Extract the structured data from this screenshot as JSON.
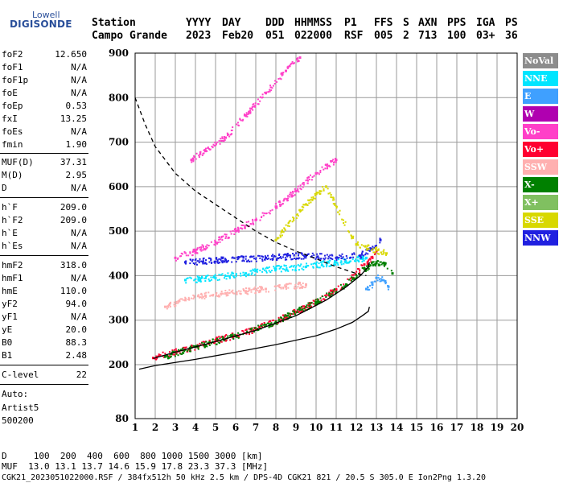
{
  "logo": {
    "top": "Lowell",
    "main": "DIGISONDE"
  },
  "header": {
    "labels": [
      "Station",
      "YYYY",
      "DAY",
      "DDD",
      "HHMMSS",
      "P1",
      "FFS",
      "S",
      "AXN",
      "PPS",
      "IGA",
      "PS"
    ],
    "values": [
      "Campo Grande",
      "2023",
      "Feb20",
      "051",
      "022000",
      "RSF",
      "005",
      "2",
      "713",
      "100",
      "03+",
      "36"
    ]
  },
  "params": [
    {
      "label": "foF2",
      "value": "12.650"
    },
    {
      "label": "foF1",
      "value": "N/A"
    },
    {
      "label": "foF1p",
      "value": "N/A"
    },
    {
      "label": "foE",
      "value": "N/A"
    },
    {
      "label": "foEp",
      "value": "0.53"
    },
    {
      "label": "fxI",
      "value": "13.25"
    },
    {
      "label": "foEs",
      "value": "N/A"
    },
    {
      "label": "fmin",
      "value": "1.90"
    },
    {
      "label": "MUF(D)",
      "value": "37.31"
    },
    {
      "label": "M(D)",
      "value": "2.95"
    },
    {
      "label": "D",
      "value": "N/A"
    },
    {
      "label": "h`F",
      "value": "209.0"
    },
    {
      "label": "h`F2",
      "value": "209.0"
    },
    {
      "label": "h`E",
      "value": "N/A"
    },
    {
      "label": "h`Es",
      "value": "N/A"
    },
    {
      "label": "hmF2",
      "value": "318.0"
    },
    {
      "label": "hmF1",
      "value": "N/A"
    },
    {
      "label": "hmE",
      "value": "110.0"
    },
    {
      "label": "yF2",
      "value": "94.0"
    },
    {
      "label": "yF1",
      "value": "N/A"
    },
    {
      "label": "yE",
      "value": "20.0"
    },
    {
      "label": "B0",
      "value": "88.3"
    },
    {
      "label": "B1",
      "value": "2.48"
    },
    {
      "label": "C-level",
      "value": "22"
    }
  ],
  "auto": {
    "line1": "Auto:",
    "line2": "Artist5",
    "line3": "500200"
  },
  "legend": [
    {
      "label": "NoVal",
      "color": "#8c8c8c"
    },
    {
      "label": "NNE",
      "color": "#00e5ff"
    },
    {
      "label": "E",
      "color": "#3fa0ff"
    },
    {
      "label": "W",
      "color": "#b000b0"
    },
    {
      "label": "Vo-",
      "color": "#ff40c8"
    },
    {
      "label": "Vo+",
      "color": "#ff0030"
    },
    {
      "label": "SSW",
      "color": "#ffb0b0"
    },
    {
      "label": "X-",
      "color": "#008000"
    },
    {
      "label": "X+",
      "color": "#80c060"
    },
    {
      "label": "SSE",
      "color": "#d8d800"
    },
    {
      "label": "NNW",
      "color": "#2020e0"
    }
  ],
  "footer": {
    "d_row": "D     100  200  400  600  800 1000 1500 3000 [km]",
    "muf_row": "MUF  13.0 13.1 13.7 14.6 15.9 17.8 23.3 37.3 [MHz]",
    "file_row": "CGK21_2023051022000.RSF / 384fx512h 50 kHz 2.5 km / DPS-4D CGK21 821 / 20.5 S 305.0 E Ion2Png 1.3.20"
  },
  "chart_data": {
    "type": "scatter",
    "xlim": [
      1,
      20
    ],
    "ylim": [
      80,
      900
    ],
    "xticks": [
      1,
      2,
      3,
      4,
      5,
      6,
      7,
      8,
      9,
      10,
      11,
      12,
      13,
      14,
      15,
      16,
      17,
      18,
      19,
      20
    ],
    "yticks": [
      80,
      200,
      300,
      400,
      500,
      600,
      700,
      800,
      900
    ],
    "grid": true,
    "legend_position": "right",
    "series": [
      {
        "name": "Vo+",
        "style": "dots",
        "color": "#ff0030",
        "x": [
          1.9,
          3.0,
          4.0,
          5.0,
          6.0,
          7.0,
          8.0,
          9.0,
          10.0,
          11.0,
          11.8,
          12.4,
          12.8,
          13.0
        ],
        "y": [
          215,
          228,
          240,
          255,
          265,
          280,
          297,
          318,
          340,
          368,
          395,
          425,
          440,
          455
        ]
      },
      {
        "name": "X-",
        "style": "dots",
        "color": "#008000",
        "x": [
          2.5,
          4.0,
          6.0,
          8.0,
          10.0,
          11.5,
          12.4,
          13.0,
          13.4,
          13.8
        ],
        "y": [
          218,
          240,
          264,
          296,
          340,
          380,
          415,
          430,
          425,
          405
        ]
      },
      {
        "name": "Vo-",
        "style": "dots",
        "color": "#ff40c8",
        "x": [
          3.0,
          4.0,
          5.0,
          6.0,
          7.0,
          8.0,
          9.0,
          10.0,
          11.0
        ],
        "y": [
          440,
          455,
          475,
          500,
          525,
          555,
          590,
          630,
          660
        ]
      },
      {
        "name": "Vo-",
        "style": "dots",
        "color": "#ff40c8",
        "x": [
          3.8,
          4.5,
          5.5,
          6.5,
          7.5,
          8.5,
          9.2
        ],
        "y": [
          660,
          680,
          710,
          760,
          810,
          860,
          890
        ]
      },
      {
        "name": "NNE",
        "style": "dots",
        "color": "#00e5ff",
        "x": [
          3.5,
          5.0,
          6.5,
          8.0,
          9.5,
          11.0,
          12.5
        ],
        "y": [
          390,
          395,
          405,
          415,
          420,
          430,
          440
        ]
      },
      {
        "name": "SSW",
        "style": "dots",
        "color": "#ffb0b0",
        "x": [
          2.5,
          3.5,
          4.5,
          5.5,
          6.5,
          7.5,
          8.5,
          9.5
        ],
        "y": [
          330,
          345,
          355,
          360,
          365,
          370,
          375,
          380
        ]
      },
      {
        "name": "NNW",
        "style": "dots",
        "color": "#2020e0",
        "x": [
          3.5,
          5.5,
          7.5,
          9.5,
          11.0,
          12.2,
          12.8,
          13.2
        ],
        "y": [
          430,
          435,
          440,
          445,
          440,
          445,
          460,
          480
        ]
      },
      {
        "name": "E",
        "style": "dots",
        "color": "#3fa0ff",
        "x": [
          12.5,
          12.8,
          13.0,
          13.3,
          13.6
        ],
        "y": [
          370,
          380,
          395,
          390,
          375
        ]
      },
      {
        "name": "SSE",
        "style": "dots",
        "color": "#d8d800",
        "x": [
          8.0,
          9.5,
          10.5,
          12.0,
          13.5
        ],
        "y": [
          480,
          560,
          600,
          470,
          450
        ]
      },
      {
        "name": "",
        "style": "solid",
        "color": "#000000",
        "x": [
          1.2,
          2.0,
          4.0,
          6.0,
          8.0,
          10.0,
          11.0,
          11.8,
          12.3,
          12.6,
          12.65
        ],
        "y": [
          190,
          198,
          212,
          228,
          245,
          265,
          280,
          295,
          310,
          320,
          330
        ]
      },
      {
        "name": "",
        "style": "solid",
        "color": "#000000",
        "x": [
          1.9,
          3.0,
          5.0,
          7.0,
          9.0,
          10.5,
          11.5,
          12.2,
          12.6,
          12.65
        ],
        "y": [
          214,
          228,
          252,
          277,
          310,
          345,
          375,
          400,
          420,
          430
        ]
      },
      {
        "name": "",
        "style": "dashed",
        "color": "#000000",
        "x": [
          1.0,
          1.5,
          2.0,
          3.0,
          4.0,
          5.0,
          6.0,
          7.0,
          8.0,
          9.0,
          10.0,
          11.0,
          12.0,
          12.5
        ],
        "y": [
          800,
          740,
          690,
          630,
          590,
          560,
          530,
          500,
          475,
          455,
          438,
          420,
          405,
          400
        ]
      }
    ]
  }
}
